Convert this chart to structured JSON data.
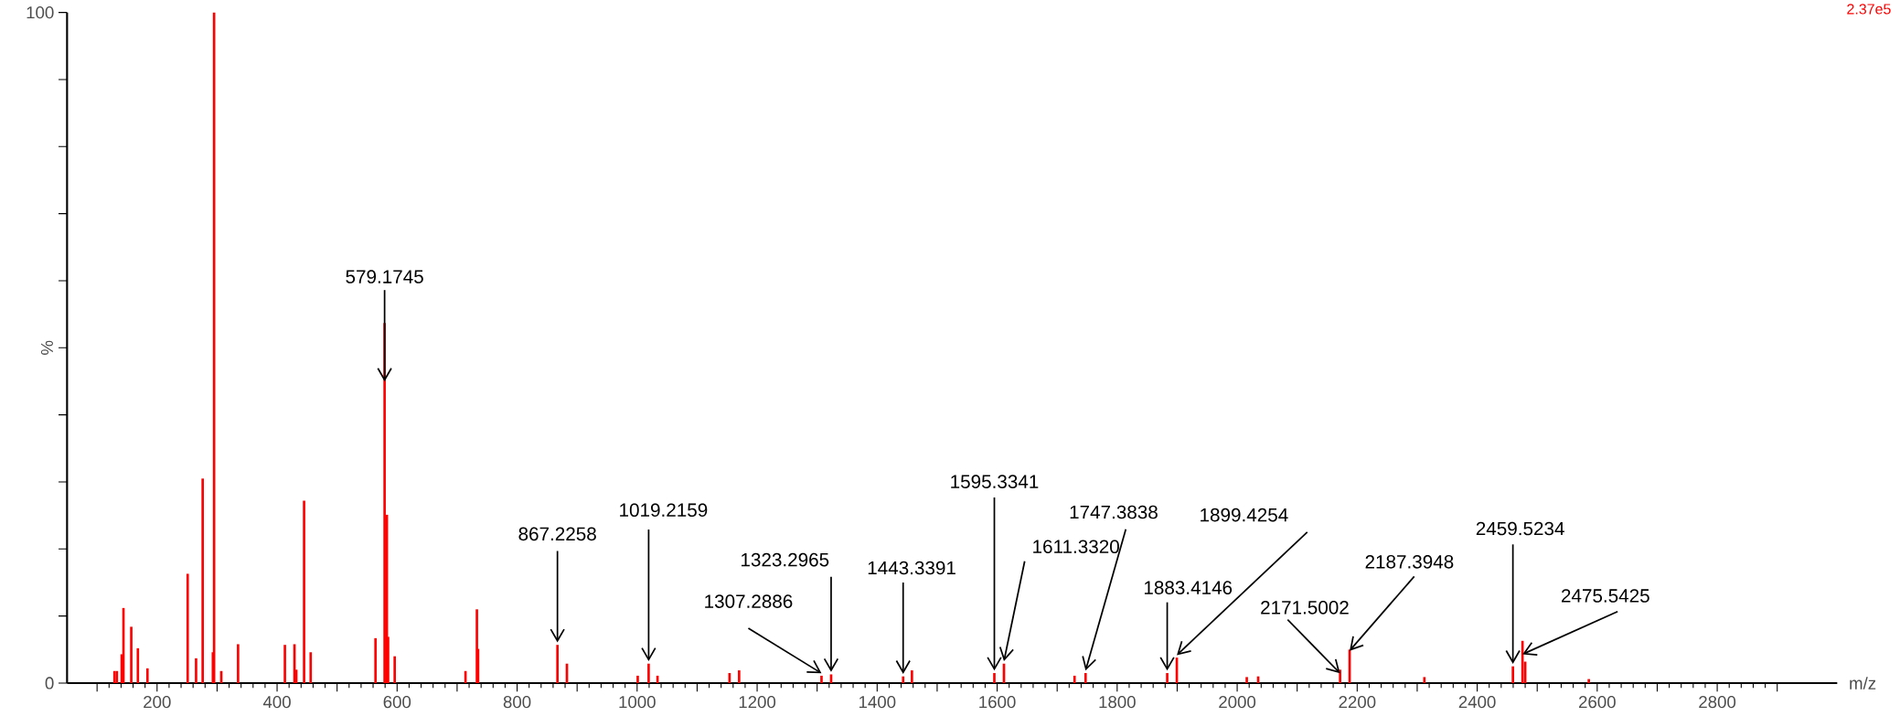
{
  "chart_data": {
    "type": "bar",
    "color": "#ff0000",
    "xlabel": "m/z",
    "ylabel": "%",
    "x": [
      129,
      133,
      141,
      144,
      157,
      168,
      184,
      251,
      265,
      276,
      293,
      295,
      307,
      335,
      413,
      429,
      432,
      445,
      456,
      564,
      579.1745,
      583,
      585,
      596,
      714,
      733,
      735,
      867.2258,
      883,
      1001,
      1019.2159,
      1034,
      1154,
      1170,
      1307.2886,
      1323.2965,
      1443.3391,
      1458,
      1595.3341,
      1611.332,
      1729,
      1747.3838,
      1883.4146,
      1899.4254,
      2016,
      2035,
      2171.5002,
      2187.3948,
      2312,
      2459.5234,
      2475.5425,
      2480,
      2586
    ],
    "values": [
      1.8,
      1.8,
      4.3,
      11.2,
      8.4,
      5.2,
      2.2,
      16.3,
      3.7,
      30.5,
      4.6,
      100,
      1.8,
      5.8,
      5.7,
      5.8,
      2.0,
      27.2,
      4.6,
      6.7,
      53.7,
      25.1,
      6.9,
      4.0,
      1.8,
      11.0,
      5.1,
      5.7,
      2.9,
      1.1,
      2.9,
      1.1,
      1.5,
      1.9,
      1.1,
      1.3,
      1.0,
      1.9,
      1.5,
      2.9,
      1.1,
      1.5,
      1.5,
      3.8,
      0.9,
      1.0,
      2.0,
      5.0,
      0.9,
      2.5,
      6.3,
      3.2,
      0.6
    ],
    "xlim": [
      50,
      3000
    ],
    "ylim": [
      0,
      100
    ],
    "xticks": [
      {
        "value": 100,
        "label": null
      },
      200,
      {
        "value": 300,
        "label": null
      },
      400,
      {
        "value": 500,
        "label": null
      },
      600,
      {
        "value": 700,
        "label": null
      },
      800,
      {
        "value": 900,
        "label": null
      },
      1000,
      {
        "value": 1100,
        "label": null
      },
      1200,
      {
        "value": 1300,
        "label": null
      },
      1400,
      {
        "value": 1500,
        "label": null
      },
      1600,
      {
        "value": 1700,
        "label": null
      },
      1800,
      {
        "value": 1900,
        "label": null
      },
      2000,
      {
        "value": 2100,
        "label": null
      },
      2200,
      {
        "value": 2300,
        "label": null
      },
      2400,
      {
        "value": 2500,
        "label": null
      },
      2600,
      {
        "value": 2700,
        "label": null
      },
      2800,
      {
        "value": 2900,
        "label": null
      }
    ],
    "yticks": [
      0,
      {
        "value": 10,
        "label": null
      },
      {
        "value": 20,
        "label": null
      },
      {
        "value": 30,
        "label": null
      },
      {
        "value": 40,
        "label": null
      },
      {
        "value": 50,
        "label": null
      },
      {
        "value": 60,
        "label": null
      },
      {
        "value": 70,
        "label": null
      },
      {
        "value": 80,
        "label": null
      },
      {
        "value": 90,
        "label": null
      },
      100
    ],
    "annotations": [
      {
        "text": "579.1745",
        "x": 579.1745,
        "y": 53.7
      },
      {
        "text": "867.2258",
        "x": 867.2258,
        "y": 5.7
      },
      {
        "text": "1019.2159",
        "x": 1019.2159,
        "y": 2.9
      },
      {
        "text": "1307.2886",
        "x": 1307.2886,
        "y": 1.1
      },
      {
        "text": "1323.2965",
        "x": 1323.2965,
        "y": 1.3
      },
      {
        "text": "1443.3391",
        "x": 1443.3391,
        "y": 1.0
      },
      {
        "text": "1595.3341",
        "x": 1595.3341,
        "y": 1.5
      },
      {
        "text": "1611.3320",
        "x": 1611.332,
        "y": 2.9
      },
      {
        "text": "1747.3838",
        "x": 1747.3838,
        "y": 1.5
      },
      {
        "text": "1883.4146",
        "x": 1883.4146,
        "y": 1.5
      },
      {
        "text": "1899.4254",
        "x": 1899.4254,
        "y": 3.8
      },
      {
        "text": "2171.5002",
        "x": 2171.5002,
        "y": 2.0
      },
      {
        "text": "2187.3948",
        "x": 2187.3948,
        "y": 5.0
      },
      {
        "text": "2459.5234",
        "x": 2459.5234,
        "y": 2.5
      },
      {
        "text": "2475.5425",
        "x": 2475.5425,
        "y": 6.3
      },
      "2.37e5"
    ]
  }
}
